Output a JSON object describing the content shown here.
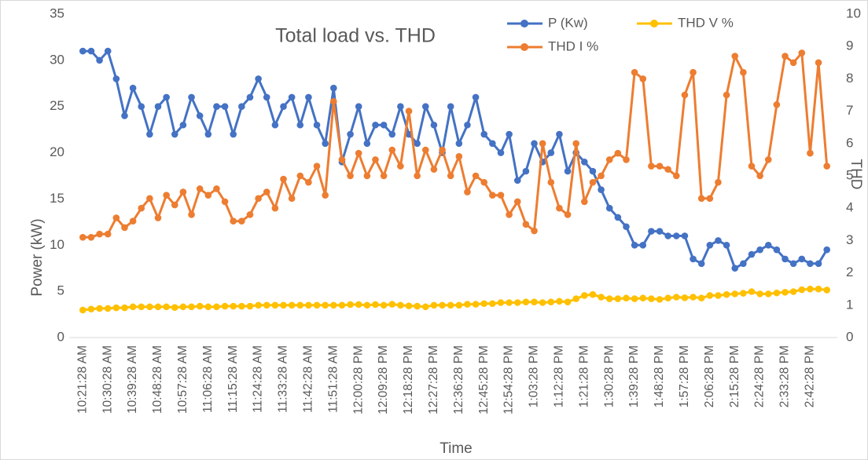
{
  "chart_data": {
    "type": "line",
    "title": "Total load vs. THD",
    "x_label": "Time",
    "y_label": "Power (kW)",
    "y2_label": "THD",
    "categories": [
      "10:21:28 AM",
      null,
      null,
      "10:30:28 AM",
      null,
      null,
      "10:39:28 AM",
      null,
      null,
      "10:48:28 AM",
      null,
      null,
      "10:57:28 AM",
      null,
      null,
      "11:06:28 AM",
      null,
      null,
      "11:15:28 AM",
      null,
      null,
      "11:24:28 AM",
      null,
      null,
      "11:33:28 AM",
      null,
      null,
      "11:42:28 AM",
      null,
      null,
      "11:51:28 AM",
      null,
      null,
      "12:00:28 PM",
      null,
      null,
      "12:09:28 PM",
      null,
      null,
      "12:18:28 PM",
      null,
      null,
      "12:27:28 PM",
      null,
      null,
      "12:36:28 PM",
      null,
      null,
      "12:45:28 PM",
      null,
      null,
      "12:54:28 PM",
      null,
      null,
      "1:03:28 PM",
      null,
      null,
      "1:12:28 PM",
      null,
      null,
      "1:21:28 PM",
      null,
      null,
      "1:30:28 PM",
      null,
      null,
      "1:39:28 PM",
      null,
      null,
      "1:48:28 PM",
      null,
      null,
      "1:57:28 PM",
      null,
      null,
      "2:06:28 PM",
      null,
      null,
      "2:15:28 PM",
      null,
      null,
      "2:24:28 PM",
      null,
      null,
      "2:33:28 PM",
      null,
      null,
      "2:42:28 PM",
      null,
      null
    ],
    "series": [
      {
        "name": "P (Kw)",
        "color": "#4472c4",
        "axis": "y",
        "values": [
          31,
          31,
          30,
          31,
          28,
          24,
          27,
          25,
          22,
          25,
          26,
          22,
          23,
          26,
          24,
          22,
          25,
          25,
          22,
          25,
          26,
          28,
          26,
          23,
          25,
          26,
          23,
          26,
          23,
          21,
          27,
          19,
          22,
          25,
          21,
          23,
          23,
          22,
          25,
          22,
          21,
          25,
          23,
          20,
          25,
          21,
          23,
          26,
          22,
          21,
          20,
          22,
          17,
          18,
          21,
          19,
          20,
          22,
          18,
          20,
          19,
          18,
          16,
          14,
          13,
          12,
          10,
          10,
          11.5,
          11.5,
          11,
          11,
          11,
          8.5,
          8,
          10,
          10.5,
          10,
          7.5,
          8,
          9,
          9.5,
          10,
          9.5,
          8.5,
          8,
          8.5,
          8,
          8,
          9.5
        ]
      },
      {
        "name": "THD I  %",
        "color": "#ed7d31",
        "axis": "y2",
        "values": [
          3.1,
          3.1,
          3.2,
          3.2,
          3.7,
          3.4,
          3.6,
          4.0,
          4.3,
          3.7,
          4.4,
          4.1,
          4.5,
          3.8,
          4.6,
          4.4,
          4.6,
          4.2,
          3.6,
          3.6,
          3.8,
          4.3,
          4.5,
          4.0,
          4.9,
          4.3,
          5.0,
          4.8,
          5.3,
          4.4,
          7.3,
          5.5,
          5.0,
          5.7,
          5.0,
          5.5,
          5.0,
          5.8,
          5.3,
          7.0,
          5.0,
          5.8,
          5.2,
          5.8,
          5.0,
          5.6,
          4.5,
          5.0,
          4.8,
          4.4,
          4.4,
          3.8,
          4.2,
          3.5,
          3.3,
          6.0,
          4.8,
          4.0,
          3.8,
          6.0,
          4.2,
          4.8,
          5.0,
          5.5,
          5.7,
          5.5,
          8.2,
          8.0,
          5.3,
          5.3,
          5.2,
          5.0,
          7.5,
          8.2,
          4.3,
          4.3,
          4.8,
          7.5,
          8.7,
          8.2,
          5.3,
          5.0,
          5.5,
          7.2,
          8.7,
          8.5,
          8.8,
          5.7,
          8.5,
          5.3
        ]
      },
      {
        "name": "THD V %",
        "color": "#ffc000",
        "axis": "y2",
        "values": [
          0.85,
          0.88,
          0.9,
          0.9,
          0.92,
          0.92,
          0.95,
          0.95,
          0.95,
          0.95,
          0.95,
          0.93,
          0.95,
          0.95,
          0.97,
          0.95,
          0.95,
          0.97,
          0.97,
          0.97,
          0.97,
          1,
          1,
          1,
          1,
          1,
          1,
          1,
          1,
          1,
          1,
          1,
          1.02,
          1.02,
          1,
          1.02,
          1,
          1.03,
          1,
          0.98,
          0.97,
          0.95,
          1,
          1,
          1,
          1,
          1.03,
          1.03,
          1.05,
          1.05,
          1.08,
          1.08,
          1.08,
          1.1,
          1.1,
          1.08,
          1.1,
          1.12,
          1.1,
          1.2,
          1.3,
          1.33,
          1.25,
          1.2,
          1.2,
          1.22,
          1.2,
          1.22,
          1.2,
          1.18,
          1.22,
          1.25,
          1.23,
          1.25,
          1.22,
          1.3,
          1.3,
          1.33,
          1.35,
          1.37,
          1.42,
          1.35,
          1.35,
          1.38,
          1.4,
          1.42,
          1.48,
          1.5,
          1.5,
          1.47
        ]
      }
    ],
    "ylim": [
      0,
      35
    ],
    "yticks": [
      0,
      5,
      10,
      15,
      20,
      25,
      30,
      35
    ],
    "y2lim": [
      0,
      10
    ],
    "y2ticks": [
      0,
      1,
      2,
      3,
      4,
      5,
      6,
      7,
      8,
      9,
      10
    ],
    "grid": false,
    "legend": "top-right"
  }
}
